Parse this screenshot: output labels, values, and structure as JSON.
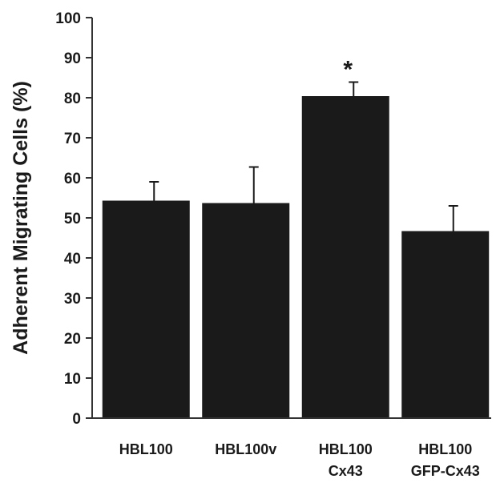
{
  "chart_data": {
    "type": "bar",
    "ylabel": "Adherent Migrating Cells (%)",
    "ylim": [
      0,
      100
    ],
    "yticks": [
      "0",
      "10",
      "20",
      "30",
      "40",
      "50",
      "60",
      "70",
      "80",
      "90",
      "100"
    ],
    "categories": [
      [
        "HBL100"
      ],
      [
        "HBL100v"
      ],
      [
        "HBL100",
        "Cx43"
      ],
      [
        "HBL100",
        "GFP-Cx43"
      ]
    ],
    "values": [
      54.3,
      53.7,
      80.4,
      46.7
    ],
    "errors": [
      4.7,
      9.0,
      3.5,
      6.3
    ],
    "annotations": [
      "",
      "",
      "*",
      ""
    ],
    "grid": false,
    "colors": {
      "bar": "#1a1a1a",
      "axis": "#333333",
      "text": "#1a1a1a"
    }
  }
}
